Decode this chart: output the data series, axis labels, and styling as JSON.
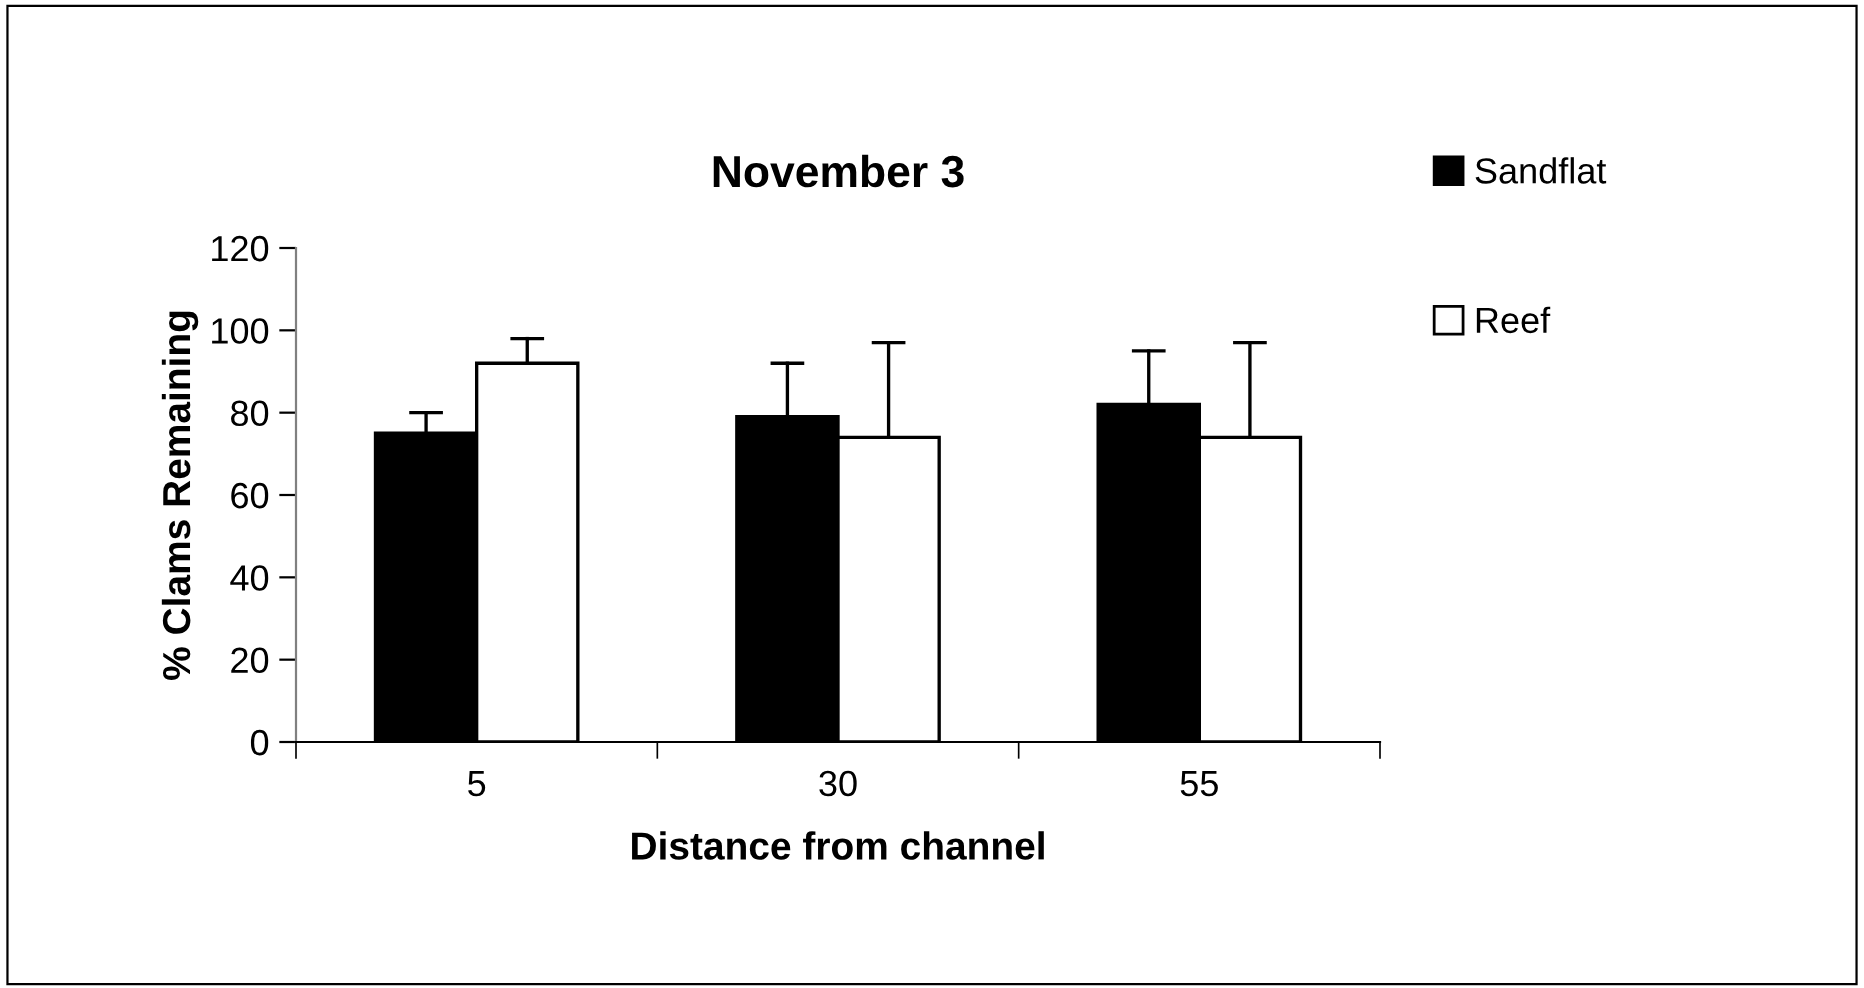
{
  "chart_data": {
    "type": "bar",
    "title": "November 3",
    "xlabel": "Distance from channel",
    "ylabel": "% Clams Remaining",
    "categories": [
      "5",
      "30",
      "55"
    ],
    "series": [
      {
        "name": "Sandflat",
        "color": "#000000",
        "values": [
          75,
          79,
          82
        ],
        "errors": [
          5,
          13,
          13
        ]
      },
      {
        "name": "Reef",
        "color": "#ffffff",
        "values": [
          92,
          74,
          74
        ],
        "errors": [
          6,
          23,
          23
        ]
      }
    ],
    "ylim": [
      0,
      120
    ],
    "yticks": [
      0,
      20,
      40,
      60,
      80,
      100,
      120
    ],
    "grid": false,
    "legend": "top right"
  }
}
